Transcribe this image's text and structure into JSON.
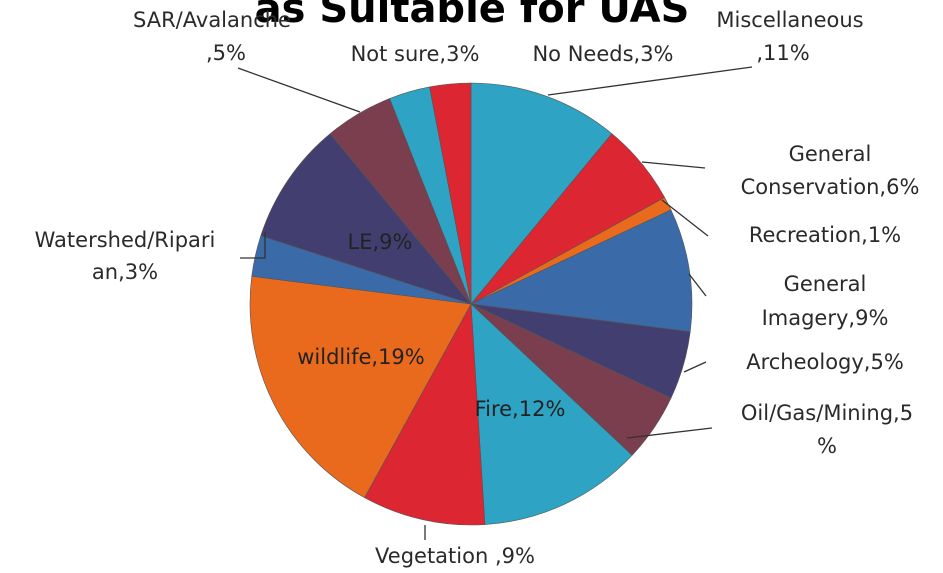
{
  "chart_data": {
    "type": "pie",
    "title": "as Suitable for UAS",
    "slices": [
      {
        "label": "Miscellaneous ,11%",
        "value": 11,
        "color": "#2ea3c4"
      },
      {
        "label": "General Conservation,6%",
        "value": 6,
        "color": "#dc2632"
      },
      {
        "label": "Recreation,1%",
        "value": 1,
        "color": "#ea6a1d"
      },
      {
        "label": "General Imagery,9%",
        "value": 9,
        "color": "#3a6aa8"
      },
      {
        "label": "Archeology,5%",
        "value": 5,
        "color": "#423f70"
      },
      {
        "label": "Oil/Gas/Mining,5 %",
        "value": 5,
        "color": "#7a3e4f"
      },
      {
        "label": "Fire,12%",
        "value": 12,
        "color": "#2ea3c4"
      },
      {
        "label": "Vegetation ,9%",
        "value": 9,
        "color": "#dc2632"
      },
      {
        "label": "wildlife,19%",
        "value": 19,
        "color": "#ea6a1d"
      },
      {
        "label": "Watershed/Ripari an,3%",
        "value": 3,
        "color": "#3a6aa8"
      },
      {
        "label": "LE,9%",
        "value": 9,
        "color": "#423f70"
      },
      {
        "label": "SAR/Avalanche ,5%",
        "value": 5,
        "color": "#7a3e4f"
      },
      {
        "label": "Not sure,3%",
        "value": 3,
        "color": "#2ea3c4"
      },
      {
        "label": "No Needs,3%",
        "value": 3,
        "color": "#dc2632"
      }
    ]
  }
}
